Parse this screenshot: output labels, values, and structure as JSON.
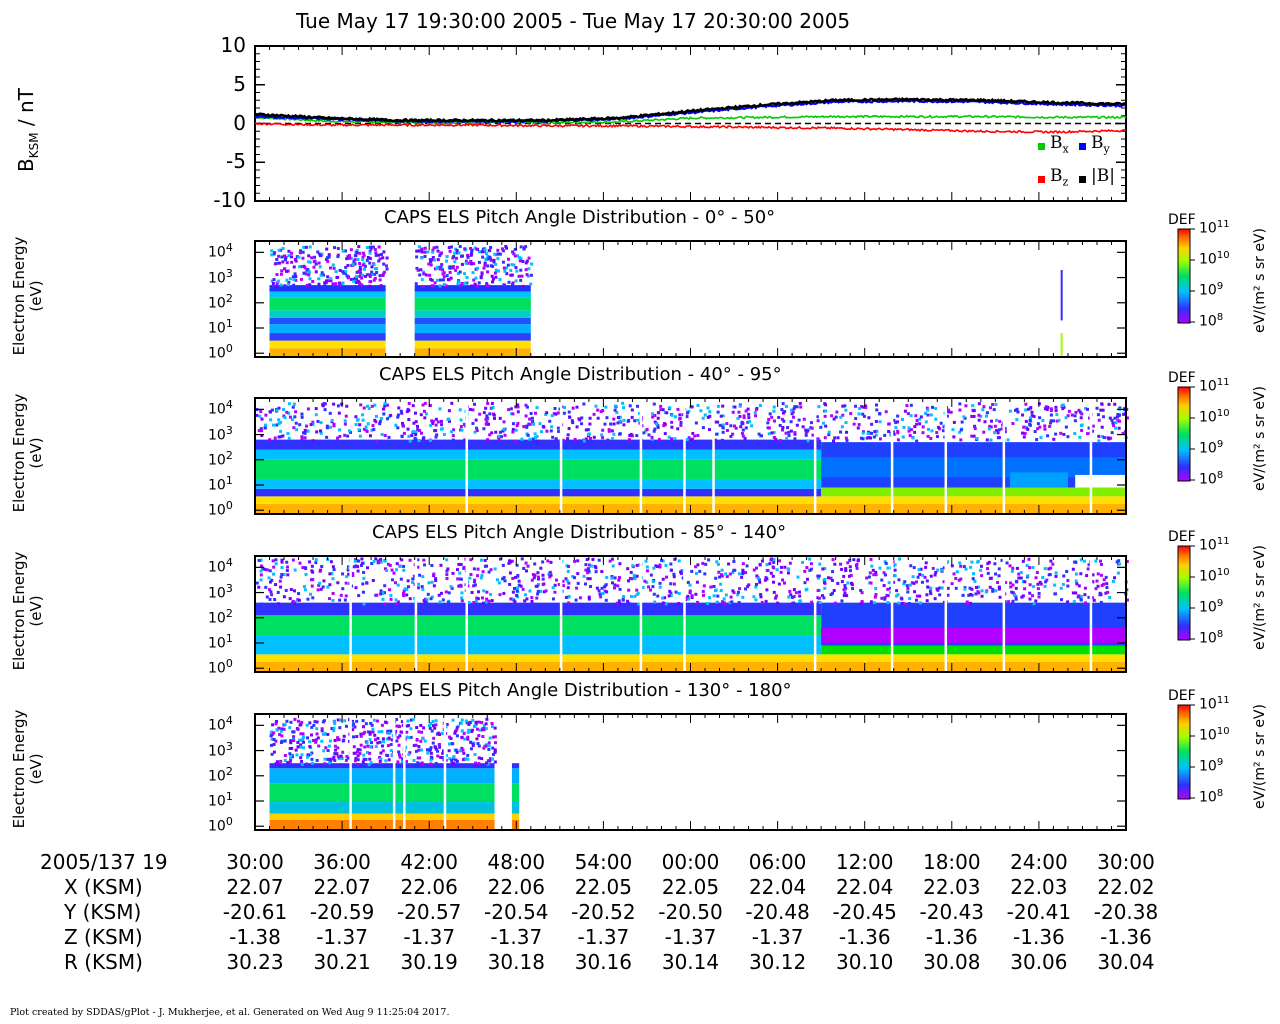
{
  "title": "Tue May 17 19:30:00 2005 - Tue May 17 20:30:00 2005",
  "footer": "Plot created by SDDAS/gPlot - J. Mukherjee, et al.  Generated on Wed Aug 9 11:25:04 2017.",
  "mag_panel": {
    "ylabel_main": "B",
    "ylabel_sub": "KSM",
    "ylabel_unit": " / nT",
    "yticks": [
      "10",
      "5",
      "0",
      "-5",
      "-10"
    ],
    "legend": [
      {
        "label": "B",
        "sub": "x",
        "color": "#00cc00"
      },
      {
        "label": "B",
        "sub": "y",
        "color": "#0000ff"
      },
      {
        "label": "B",
        "sub": "z",
        "color": "#ff0000"
      },
      {
        "label": "|B|",
        "sub": "",
        "color": "#000000"
      }
    ]
  },
  "spectro_panels": [
    {
      "title": "CAPS ELS Pitch Angle Distribution - 0° - 50°",
      "ylabel_1": "Electron Energy",
      "ylabel_2": "(eV)"
    },
    {
      "title": "CAPS ELS Pitch Angle Distribution - 40° - 95°",
      "ylabel_1": "Electron Energy",
      "ylabel_2": "(eV)"
    },
    {
      "title": "CAPS ELS Pitch Angle Distribution - 85° - 140°",
      "ylabel_1": "Electron Energy",
      "ylabel_2": "(eV)"
    },
    {
      "title": "CAPS ELS Pitch Angle Distribution - 130° - 180°",
      "ylabel_1": "Electron Energy",
      "ylabel_2": "(eV)"
    }
  ],
  "energy_ticks": [
    "10",
    "10",
    "10",
    "10",
    "10"
  ],
  "energy_exps": [
    "4",
    "3",
    "2",
    "1",
    "0"
  ],
  "colorbar": {
    "label": "DEF",
    "unit": "eV/(m² s sr eV)",
    "ticks": [
      "10",
      "10",
      "10",
      "10"
    ],
    "exps": [
      "11",
      "10",
      "9",
      "8"
    ]
  },
  "ephemeris": {
    "date_label": "2005/137 19",
    "times": [
      "30:00",
      "36:00",
      "42:00",
      "48:00",
      "54:00",
      "00:00",
      "06:00",
      "12:00",
      "18:00",
      "24:00",
      "30:00"
    ],
    "rows": [
      {
        "label": "X (KSM)",
        "values": [
          "22.07",
          "22.07",
          "22.06",
          "22.06",
          "22.05",
          "22.05",
          "22.04",
          "22.04",
          "22.03",
          "22.03",
          "22.02"
        ]
      },
      {
        "label": "Y (KSM)",
        "values": [
          "-20.61",
          "-20.59",
          "-20.57",
          "-20.54",
          "-20.52",
          "-20.50",
          "-20.48",
          "-20.45",
          "-20.43",
          "-20.41",
          "-20.38"
        ]
      },
      {
        "label": "Z (KSM)",
        "values": [
          "-1.38",
          "-1.37",
          "-1.37",
          "-1.37",
          "-1.37",
          "-1.37",
          "-1.37",
          "-1.36",
          "-1.36",
          "-1.36",
          "-1.36"
        ]
      },
      {
        "label": "R (KSM)",
        "values": [
          "30.23",
          "30.21",
          "30.19",
          "30.18",
          "30.16",
          "30.14",
          "30.12",
          "30.10",
          "30.08",
          "30.06",
          "30.04"
        ]
      }
    ]
  },
  "chart_data": [
    {
      "type": "line",
      "x_unit": "minutes after 19:30",
      "ylim": [
        -10,
        10
      ],
      "series": [
        {
          "name": "Bx",
          "x": [
            0,
            5,
            10,
            15,
            20,
            25,
            30,
            35,
            40,
            45,
            50,
            55,
            60
          ],
          "values": [
            0.8,
            0.3,
            0.1,
            0.1,
            0.1,
            0.2,
            0.7,
            0.8,
            0.9,
            0.9,
            0.9,
            0.8,
            0.8
          ]
        },
        {
          "name": "By",
          "x": [
            0,
            5,
            10,
            15,
            20,
            25,
            30,
            35,
            40,
            45,
            50,
            55,
            60
          ],
          "values": [
            0.9,
            0.6,
            0.3,
            0.3,
            0.3,
            0.6,
            1.4,
            2.2,
            2.8,
            2.9,
            2.8,
            2.5,
            2.3
          ]
        },
        {
          "name": "Bz",
          "x": [
            0,
            5,
            10,
            15,
            20,
            25,
            30,
            35,
            40,
            45,
            50,
            55,
            60
          ],
          "values": [
            0.0,
            -0.2,
            -0.2,
            -0.2,
            -0.3,
            -0.3,
            -0.4,
            -0.5,
            -0.6,
            -0.8,
            -1.0,
            -1.1,
            -0.9
          ]
        },
        {
          "name": "|B|",
          "x": [
            0,
            5,
            10,
            15,
            20,
            25,
            30,
            35,
            40,
            45,
            50,
            55,
            60
          ],
          "values": [
            1.2,
            0.7,
            0.4,
            0.4,
            0.4,
            0.7,
            1.6,
            2.4,
            3.0,
            3.1,
            3.0,
            2.7,
            2.5
          ]
        }
      ]
    },
    {
      "type": "heatmap",
      "title": "CAPS ELS Pitch Angle Distribution - 0° - 50°",
      "ylabel": "Electron Energy (eV)",
      "colorbar_range_DEF": [
        100000000.0,
        100000000000.0
      ],
      "data_intervals_min": [
        [
          1,
          9
        ],
        [
          11,
          19
        ]
      ]
    },
    {
      "type": "heatmap",
      "title": "CAPS ELS Pitch Angle Distribution - 40° - 95°",
      "ylabel": "Electron Energy (eV)",
      "colorbar_range_DEF": [
        100000000.0,
        100000000000.0
      ],
      "data_intervals_min": [
        [
          0,
          60
        ]
      ]
    },
    {
      "type": "heatmap",
      "title": "CAPS ELS Pitch Angle Distribution - 85° - 140°",
      "ylabel": "Electron Energy (eV)",
      "colorbar_range_DEF": [
        100000000.0,
        100000000000.0
      ],
      "data_intervals_min": [
        [
          0,
          60
        ]
      ]
    },
    {
      "type": "heatmap",
      "title": "CAPS ELS Pitch Angle Distribution - 130° - 180°",
      "ylabel": "Electron Energy (eV)",
      "colorbar_range_DEF": [
        100000000.0,
        100000000000.0
      ],
      "data_intervals_min": [
        [
          1,
          17
        ],
        [
          17.7,
          18.2
        ]
      ]
    }
  ]
}
